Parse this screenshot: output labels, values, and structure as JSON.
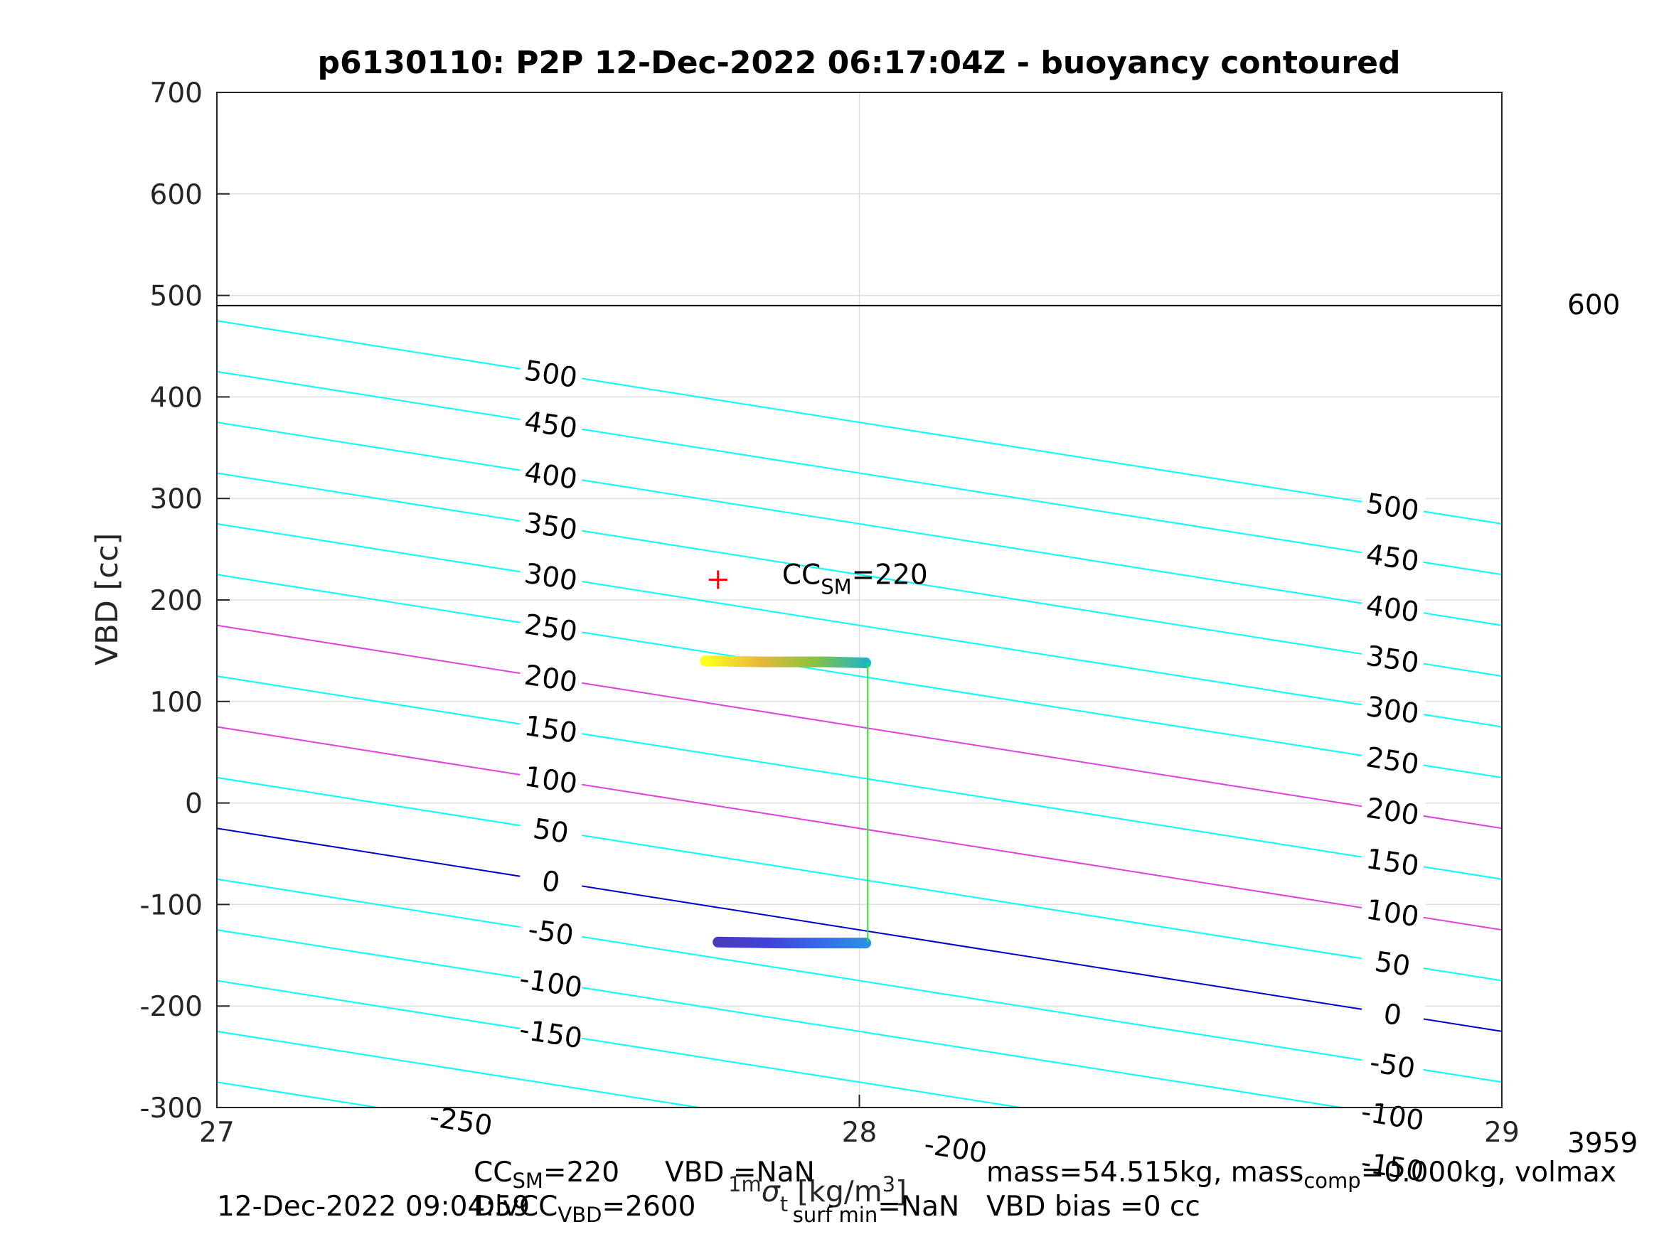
{
  "chart_data": {
    "type": "line",
    "title": "p6130110: P2P 12-Dec-2022 06:17:04Z - buoyancy contoured",
    "xlabel": "1m σ_t [kg/m^3]",
    "ylabel": "VBD [cc]",
    "xlim": [
      27,
      29
    ],
    "ylim": [
      -300,
      700
    ],
    "xticks": [
      "27",
      "28",
      "29"
    ],
    "yticks": [
      "-300",
      "-200",
      "-100",
      "0",
      "100",
      "200",
      "300",
      "400",
      "500",
      "600",
      "700"
    ],
    "grid": true,
    "right_labels": {
      "top": "600",
      "bottom": "3959"
    },
    "limit_line": {
      "vbd": 490,
      "color": "#000000"
    },
    "contours": {
      "slope_per_unit_x": -100,
      "values": [
        -250,
        -200,
        -150,
        -100,
        -50,
        0,
        50,
        100,
        150,
        200,
        250,
        300,
        350,
        400,
        450,
        500
      ],
      "vbd_at_x27": [
        -275,
        -225,
        -175,
        -125,
        -75,
        -25,
        25,
        75,
        125,
        175,
        225,
        275,
        325,
        375,
        425,
        475
      ],
      "labels_left": [
        "-250",
        "-150",
        "-100",
        "-50",
        "0",
        "50",
        "100",
        "150",
        "200",
        "250",
        "300",
        "350",
        "400",
        "450",
        "500"
      ],
      "labels_right": [
        "-200",
        "-150",
        "-100",
        "-50",
        "0",
        "50",
        "100",
        "150",
        "200",
        "250",
        "300",
        "350",
        "400",
        "450",
        "500"
      ],
      "color": "#00ffff",
      "zero_color": "#0000cd",
      "highlight_values": [
        100,
        200
      ],
      "highlight_color": "#e040e0"
    },
    "cc_sm_marker": {
      "x": 27.78,
      "vbd": 220,
      "label": "CC",
      "label_sub": "SM",
      "label_tail": "=220",
      "color": "#ff0000"
    },
    "series": [
      {
        "x": [
          27.76,
          27.85,
          27.95,
          28.01
        ],
        "vbd": [
          140,
          139,
          139,
          138
        ],
        "colors": [
          "#ffff1a",
          "#e8b83a",
          "#8ec13f",
          "#1fb5c4"
        ]
      },
      {
        "x": [
          27.78,
          27.88,
          27.97,
          28.01
        ],
        "vbd": [
          -137,
          -138,
          -138,
          -138
        ],
        "colors": [
          "#4a3bbf",
          "#4040d8",
          "#3a66ee",
          "#2c8fe0"
        ]
      }
    ],
    "connector": {
      "x": 28.013,
      "vbd_top": 138,
      "vbd_bottom": -137,
      "color": "#22ee22"
    }
  },
  "footer": {
    "line1": {
      "cc_sm": {
        "a": "CC",
        "sub": "SM",
        "b": "=220"
      },
      "vbd": "VBD       =NaN",
      "mass": {
        "a": "mass=54.515kg, mass",
        "sub": "comp",
        "b": "=0.000kg, volmax"
      }
    },
    "line2": {
      "date": "12-Dec-2022 09:04:59",
      "div": {
        "a": "DivCC",
        "sub": "VBD",
        "b": "=2600"
      },
      "sigma": {
        "a": "σ",
        "sub": "surf min",
        "b": "=NaN"
      },
      "vbd_bias": "VBD bias =0 cc"
    }
  }
}
